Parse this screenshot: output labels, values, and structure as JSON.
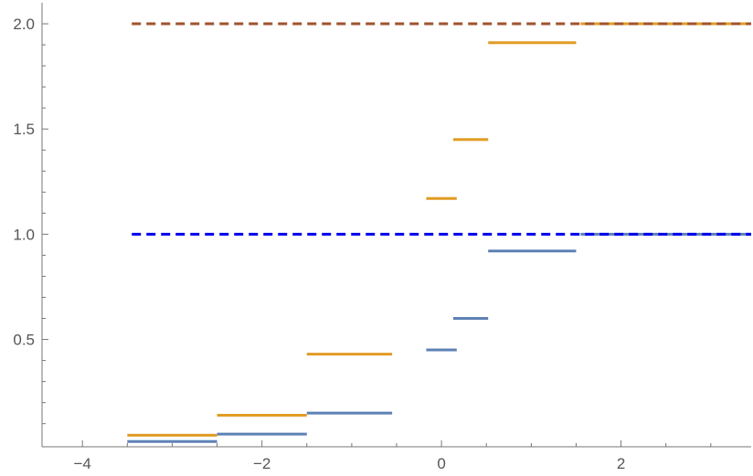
{
  "chart_data": {
    "type": "line",
    "title": "",
    "xlabel": "",
    "ylabel": "",
    "xlim": [
      -4.45,
      3.45
    ],
    "ylim": [
      -0.01,
      2.1
    ],
    "grid": false,
    "x_ticks": [
      {
        "value": -4,
        "label": "−4"
      },
      {
        "value": -2,
        "label": "−2"
      },
      {
        "value": 0,
        "label": "0"
      },
      {
        "value": 2,
        "label": "2"
      }
    ],
    "x_minor_ticks": [
      -3.5,
      -3,
      -2.5,
      -1.5,
      -1,
      -0.5,
      0.5,
      1,
      1.5,
      2.5,
      3
    ],
    "y_ticks": [
      {
        "value": 0.5,
        "label": "0.5"
      },
      {
        "value": 1.0,
        "label": "1.0"
      },
      {
        "value": 1.5,
        "label": "1.5"
      },
      {
        "value": 2.0,
        "label": "2.0"
      }
    ],
    "y_minor_ticks": [
      0.1,
      0.2,
      0.3,
      0.4,
      0.6,
      0.7,
      0.8,
      0.9,
      1.1,
      1.2,
      1.3,
      1.4,
      1.6,
      1.7,
      1.8,
      1.9
    ],
    "series": [
      {
        "color": "#5e81b5",
        "style": "solid",
        "segments": [
          {
            "x0": -3.5,
            "x1": -2.5,
            "y": 0.015
          },
          {
            "x0": -2.5,
            "x1": -1.5,
            "y": 0.05
          },
          {
            "x0": -1.5,
            "x1": -0.55,
            "y": 0.15
          },
          {
            "x0": -0.17,
            "x1": 0.17,
            "y": 0.45
          },
          {
            "x0": 0.13,
            "x1": 0.52,
            "y": 0.6
          },
          {
            "x0": 0.52,
            "x1": 1.5,
            "y": 0.92
          },
          {
            "x0": 1.55,
            "x1": 2.45,
            "y": 1.0
          },
          {
            "x0": 2.5,
            "x1": 3.45,
            "y": 1.0
          }
        ]
      },
      {
        "color": "#e19c24",
        "style": "solid",
        "segments": [
          {
            "x0": -3.5,
            "x1": -2.5,
            "y": 0.045
          },
          {
            "x0": -2.5,
            "x1": -1.5,
            "y": 0.14
          },
          {
            "x0": -1.5,
            "x1": -0.55,
            "y": 0.43
          },
          {
            "x0": -0.17,
            "x1": 0.17,
            "y": 1.17
          },
          {
            "x0": 0.13,
            "x1": 0.52,
            "y": 1.45
          },
          {
            "x0": 0.52,
            "x1": 1.5,
            "y": 1.91
          },
          {
            "x0": 1.55,
            "x1": 2.45,
            "y": 2.0
          },
          {
            "x0": 2.5,
            "x1": 3.45,
            "y": 2.0
          }
        ]
      },
      {
        "color": "#0000ee",
        "style": "dashed",
        "segments": [
          {
            "x0": -3.45,
            "x1": 3.45,
            "y": 1.0
          }
        ]
      },
      {
        "color": "#a0522d",
        "style": "dashed",
        "segments": [
          {
            "x0": -3.45,
            "x1": 3.45,
            "y": 2.0
          }
        ]
      }
    ]
  }
}
